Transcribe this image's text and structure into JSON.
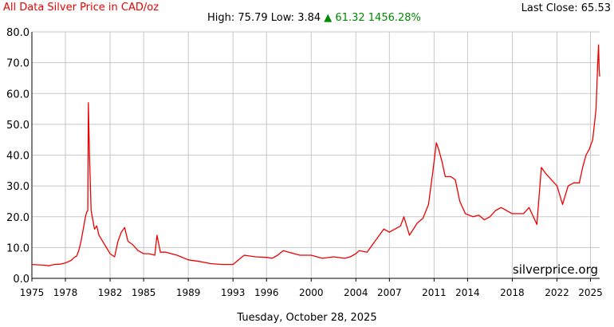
{
  "header": {
    "title": "All Data Silver Price in CAD/oz",
    "last_close": "Last Close: 65.53",
    "high_label": "High:",
    "high": "75.79",
    "low_label": "Low:",
    "low": "3.84",
    "change_arrow": "▲",
    "change": "61.32",
    "change_pct": "1456.28%"
  },
  "footer": {
    "date": "Tuesday, October 28, 2025"
  },
  "colors": {
    "line": "#ee0000",
    "grid": "#c8c8c8",
    "up": "#008800"
  },
  "chart_data": {
    "type": "line",
    "title": "All Data Silver Price in CAD/oz",
    "watermark": "silverprice.org",
    "xlabel": "",
    "ylabel": "",
    "xlim": [
      1975,
      2025.82
    ],
    "ylim": [
      0,
      80
    ],
    "grid": true,
    "y_ticks": [
      "0.0",
      "10.0",
      "20.0",
      "30.0",
      "40.0",
      "50.0",
      "60.0",
      "70.0",
      "80.0"
    ],
    "x_ticks": [
      "1975",
      "1978",
      "1982",
      "1985",
      "1989",
      "1993",
      "1996",
      "2000",
      "2004",
      "2007",
      "2011",
      "2014",
      "2018",
      "2022",
      "2025"
    ],
    "series": [
      {
        "name": "",
        "x": [
          1975.0,
          1975.5,
          1976.0,
          1976.5,
          1977.0,
          1977.5,
          1978.0,
          1978.5,
          1978.8,
          1979.0,
          1979.2,
          1979.4,
          1979.6,
          1979.8,
          1979.9,
          1980.0,
          1980.05,
          1980.15,
          1980.3,
          1980.5,
          1980.6,
          1980.8,
          1981.0,
          1981.5,
          1982.0,
          1982.4,
          1982.7,
          1983.0,
          1983.3,
          1983.6,
          1984.0,
          1984.5,
          1985.0,
          1985.5,
          1986.0,
          1986.2,
          1986.5,
          1987.0,
          1987.5,
          1988.0,
          1989.0,
          1990.0,
          1991.0,
          1992.0,
          1993.0,
          1993.5,
          1994.0,
          1995.0,
          1996.0,
          1996.5,
          1997.0,
          1997.5,
          1998.0,
          1999.0,
          2000.0,
          2001.0,
          2002.0,
          2003.0,
          2003.5,
          2004.0,
          2004.3,
          2005.0,
          2006.0,
          2006.5,
          2007.0,
          2008.0,
          2008.3,
          2008.8,
          2009.5,
          2010.0,
          2010.5,
          2010.9,
          2011.2,
          2011.4,
          2011.7,
          2012.0,
          2012.5,
          2012.9,
          2013.3,
          2013.8,
          2014.5,
          2015.0,
          2015.5,
          2016.0,
          2016.5,
          2017.0,
          2018.0,
          2019.0,
          2019.5,
          2020.2,
          2020.6,
          2021.0,
          2021.5,
          2022.0,
          2022.5,
          2023.0,
          2023.5,
          2024.0,
          2024.3,
          2024.6,
          2024.9,
          2025.2,
          2025.5,
          2025.65,
          2025.72,
          2025.78,
          2025.82
        ],
        "values": [
          4.5,
          4.4,
          4.3,
          4.1,
          4.5,
          4.6,
          5.0,
          5.8,
          6.8,
          7.2,
          9.0,
          12.0,
          16.0,
          20.0,
          21.5,
          22.0,
          57.0,
          40.0,
          22.0,
          18.0,
          16.0,
          17.0,
          14.0,
          11.0,
          8.0,
          7.0,
          12.0,
          15.0,
          16.5,
          12.0,
          11.0,
          9.0,
          8.0,
          8.0,
          7.5,
          14.0,
          8.5,
          8.5,
          8.0,
          7.5,
          6.0,
          5.5,
          4.8,
          4.5,
          4.5,
          6.0,
          7.5,
          7.0,
          6.8,
          6.5,
          7.5,
          9.0,
          8.5,
          7.5,
          7.5,
          6.5,
          7.0,
          6.5,
          7.0,
          8.0,
          9.0,
          8.5,
          13.5,
          16.0,
          15.0,
          17.0,
          20.0,
          14.0,
          18.0,
          19.5,
          24.0,
          35.0,
          44.0,
          42.0,
          38.0,
          33.0,
          33.0,
          32.0,
          25.0,
          21.0,
          20.0,
          20.5,
          19.0,
          20.0,
          22.0,
          23.0,
          21.0,
          21.0,
          23.0,
          17.5,
          36.0,
          34.0,
          32.0,
          30.0,
          24.0,
          30.0,
          31.0,
          31.0,
          36.0,
          40.0,
          42.0,
          45.0,
          55.0,
          70.0,
          75.79,
          68.0,
          65.53
        ]
      }
    ]
  }
}
